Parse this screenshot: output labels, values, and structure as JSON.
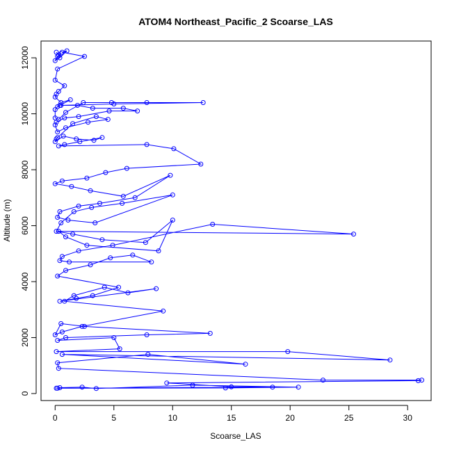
{
  "chart_data": {
    "type": "line",
    "title": "ATOM4 Northeast_Pacific_2 Scoarse_LAS",
    "xlabel": "Scoarse_LAS",
    "ylabel": "Altitude (m)",
    "xlim": [
      -1.2,
      32.0
    ],
    "ylim": [
      -250,
      12600
    ],
    "xticks": [
      0,
      5,
      10,
      15,
      20,
      25,
      30
    ],
    "yticks": [
      0,
      2000,
      4000,
      6000,
      8000,
      10000,
      12000
    ],
    "grid": false,
    "markers": "open-circle",
    "color": "#0000ff",
    "series": [
      {
        "x": [
          0.1,
          0.3,
          0.5,
          0.2,
          0.0,
          0.4,
          1.0,
          0.6,
          2.5,
          0.2,
          0.0,
          0.8,
          0.3,
          0.1,
          0.0,
          0.5,
          1.3,
          0.4,
          0.2,
          0.0,
          0.0,
          0.3,
          0.9,
          2.4,
          4.8,
          7.8,
          12.6,
          5.0,
          0.5,
          1.9,
          3.2,
          5.8,
          7.0,
          4.6,
          2.0,
          0.8,
          0.1,
          0.0,
          0.2,
          0.9,
          2.8,
          4.5,
          3.5,
          1.5,
          0.2,
          0.1,
          0.0,
          0.7,
          1.8,
          3.3,
          4.0,
          2.1,
          0.8,
          0.3,
          7.8,
          10.1,
          12.4,
          6.1,
          4.3,
          2.7,
          0.6,
          0.0,
          1.4,
          3.0,
          5.8,
          9.8,
          6.8,
          3.8,
          2.0,
          0.4,
          0.2,
          1.1,
          3.4,
          10.0,
          5.7,
          3.1,
          1.6,
          0.5,
          0.1,
          1.5,
          4.0,
          7.7,
          10.0,
          8.8,
          2.7,
          0.9,
          0.3,
          25.4,
          13.4,
          4.9,
          2.0,
          0.6,
          0.4,
          1.2,
          8.2,
          6.6,
          4.7,
          3.0,
          0.9,
          0.2,
          5.4,
          3.2,
          1.8,
          0.4,
          8.6,
          6.2,
          4.2,
          1.6,
          0.8,
          9.2,
          2.3,
          0.6,
          0.0,
          0.5,
          2.5,
          13.2,
          7.8,
          0.9,
          0.2,
          5.0,
          5.5,
          0.1,
          19.8,
          28.5,
          0.6,
          16.2,
          7.9,
          0.2,
          0.3,
          22.8,
          31.2,
          30.9,
          9.5,
          15.0,
          18.5,
          0.1,
          14.5,
          20.7,
          11.7,
          3.5,
          2.3,
          0.4,
          0.2
        ],
        "y": [
          12200,
          12100,
          12150,
          12050,
          11900,
          12000,
          12250,
          12200,
          12050,
          11600,
          11200,
          11000,
          10800,
          10700,
          10600,
          10400,
          10500,
          10300,
          10250,
          10150,
          9850,
          9800,
          10050,
          10400,
          10400,
          10400,
          10400,
          10350,
          10300,
          10300,
          10200,
          10200,
          10100,
          10100,
          9900,
          9850,
          9700,
          9600,
          9350,
          9500,
          9700,
          9800,
          9900,
          9650,
          9150,
          9100,
          9000,
          9200,
          9100,
          9050,
          9150,
          9000,
          8900,
          8850,
          8900,
          8750,
          8200,
          8050,
          7900,
          7700,
          7600,
          7500,
          7400,
          7250,
          7050,
          7800,
          7000,
          6800,
          6700,
          6500,
          6300,
          6200,
          6100,
          7100,
          6800,
          6650,
          6500,
          6100,
          5800,
          5700,
          5500,
          5400,
          6200,
          5100,
          5300,
          5600,
          5800,
          5700,
          6050,
          5300,
          5100,
          4900,
          4750,
          4700,
          4700,
          4950,
          4850,
          4600,
          4400,
          4200,
          3800,
          3500,
          3400,
          3300,
          3750,
          3600,
          3800,
          3500,
          3300,
          2950,
          2400,
          2200,
          2100,
          2500,
          2400,
          2150,
          2100,
          2000,
          1900,
          2000,
          1600,
          1500,
          1500,
          1200,
          1400,
          1050,
          1400,
          1100,
          900,
          480,
          480,
          460,
          380,
          240,
          230,
          190,
          200,
          230,
          300,
          180,
          230,
          210,
          190
        ]
      }
    ]
  }
}
